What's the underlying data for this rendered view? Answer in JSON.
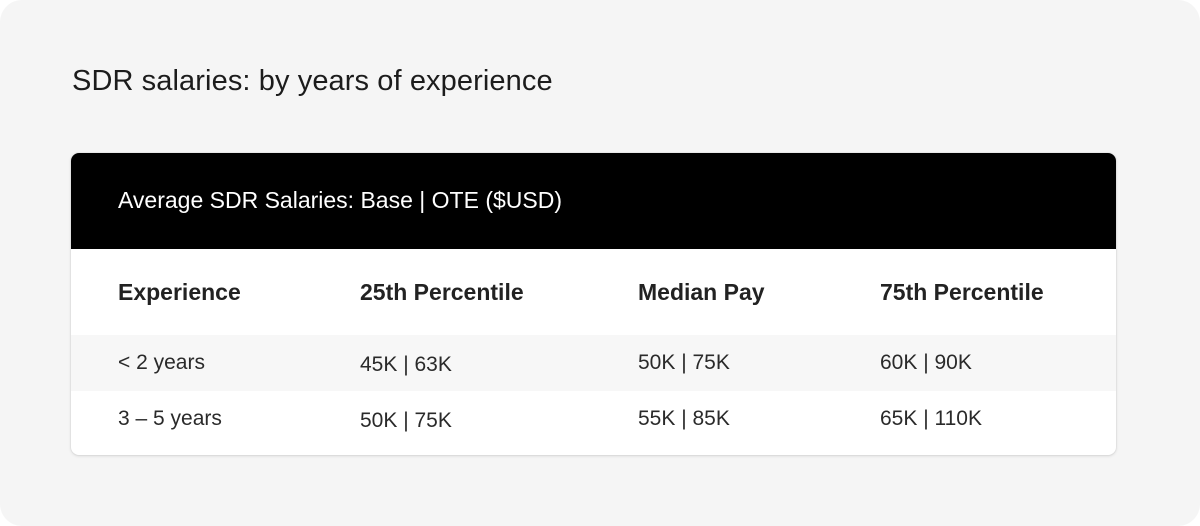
{
  "page": {
    "title": "SDR salaries: by years of experience"
  },
  "table": {
    "title": "Average SDR Salaries: Base | OTE ($USD)",
    "columns": [
      "Experience",
      "25th Percentile",
      "Median Pay",
      "75th Percentile"
    ],
    "rows": [
      [
        "< 2 years",
        "45K | 63K",
        "50K | 75K",
        "60K | 90K"
      ],
      [
        "3 – 5 years",
        "50K | 75K",
        "55K | 85K",
        "65K | 110K"
      ]
    ]
  },
  "colors": {
    "header_bg": "#000000",
    "page_bg": "#f5f5f5",
    "stripe_bg": "#f7f7f7"
  }
}
